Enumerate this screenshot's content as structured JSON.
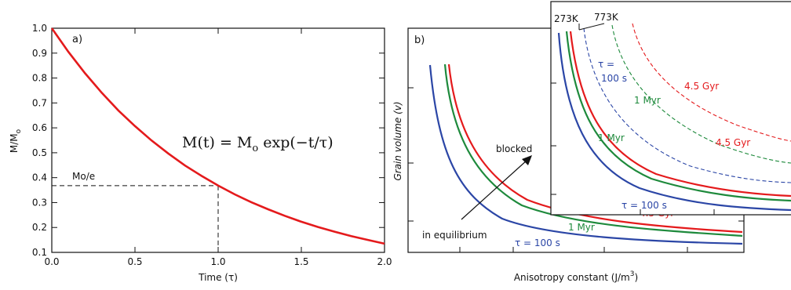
{
  "chart_data": [
    {
      "type": "line",
      "panel_label": "a)",
      "xlabel": "Time (τ)",
      "ylabel": "M/M",
      "ylabel_sub": "o",
      "xlim": [
        0.0,
        2.0
      ],
      "ylim": [
        0.1,
        1.0
      ],
      "xticks": [
        0.0,
        0.5,
        1.0,
        1.5,
        2.0
      ],
      "xtick_labels": [
        "0.0",
        "0.5",
        "1.0",
        "1.5",
        "2.0"
      ],
      "yticks": [
        0.1,
        0.2,
        0.3,
        0.4,
        0.5,
        0.6,
        0.7,
        0.8,
        0.9,
        1.0
      ],
      "ytick_labels": [
        "0.1",
        "0.2",
        "0.3",
        "0.4",
        "0.5",
        "0.6",
        "0.7",
        "0.8",
        "0.9",
        "1.0"
      ],
      "series": [
        {
          "function": "exp(-t)",
          "color": "#e41a1c",
          "x": [
            0.0,
            0.1,
            0.2,
            0.3,
            0.4,
            0.5,
            0.6,
            0.7,
            0.8,
            0.9,
            1.0,
            1.1,
            1.2,
            1.3,
            1.4,
            1.5,
            1.6,
            1.7,
            1.8,
            1.9,
            2.0
          ],
          "y": [
            1.0,
            0.905,
            0.819,
            0.741,
            0.67,
            0.607,
            0.549,
            0.497,
            0.449,
            0.407,
            0.368,
            0.333,
            0.301,
            0.273,
            0.247,
            0.223,
            0.202,
            0.183,
            0.165,
            0.15,
            0.135
          ]
        }
      ],
      "annotations": {
        "ref_label": "Mo/e",
        "ref_value": 0.368,
        "ref_x": 1.0,
        "equation_lhs": "M(t) = M",
        "equation_sub": "o",
        "equation_rhs": " exp(−t/τ)"
      }
    },
    {
      "type": "line",
      "panel_label": "b)",
      "xlabel": "Anisotropy constant (J/m",
      "xlabel_sup": "3",
      "xlabel_end": ")",
      "ylabel": "Grain volume (v)",
      "series": [
        {
          "name": "τ = 100 s",
          "color": "#2b46a6"
        },
        {
          "name": "1 Myr",
          "color": "#1e8a3c"
        },
        {
          "name": "4.5 Gyr",
          "color": "#e41a1c"
        }
      ],
      "annotations": {
        "blocked": "blocked",
        "equilibrium": "in equilibrium"
      },
      "inset": {
        "temperatures": [
          "273K",
          "773K"
        ],
        "series_273K": [
          {
            "name": "τ = 100 s",
            "color": "#2b46a6"
          },
          {
            "name": "1 Myr",
            "color": "#1e8a3c"
          },
          {
            "name": "4.5 Gyr",
            "color": "#e41a1c"
          }
        ],
        "series_773K": [
          {
            "name": "τ =",
            "name2": "100 s",
            "color": "#2b46a6",
            "style": "dashed"
          },
          {
            "name": "1 Myr",
            "color": "#1e8a3c",
            "style": "dashed"
          },
          {
            "name": "4.5 Gyr",
            "color": "#e41a1c",
            "style": "dashed"
          }
        ]
      }
    }
  ]
}
